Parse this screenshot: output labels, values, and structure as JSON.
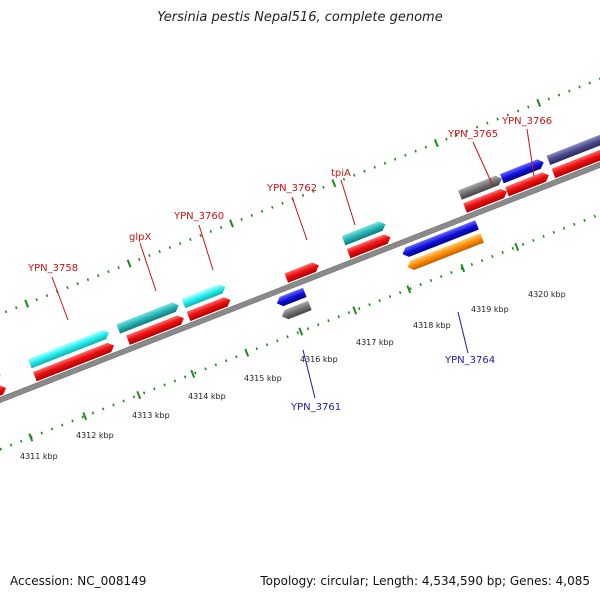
{
  "title": "Yersinia pestis Nepal516, complete genome",
  "footer": {
    "accession": "Accession: NC_008149",
    "summary": "Topology: circular; Length: 4,534,590 bp; Genes: 4,085"
  },
  "colors": {
    "backbone": "#8a8a8a",
    "tick": "#1f8a1f",
    "red": "#ee1111",
    "cyan": "#22dddd",
    "teal": "#22b4b4",
    "blue": "#1111dd",
    "gray": "#707070",
    "orange": "#ff8c00",
    "slate": "#4a4a8a"
  },
  "scale_labels": [
    "4311 kbp",
    "4312 kbp",
    "4313 kbp",
    "4314 kbp",
    "4315 kbp",
    "4316 kbp",
    "4317 kbp",
    "4318 kbp",
    "4319 kbp",
    "4320 kbp"
  ],
  "gene_labels_forward": [
    "YPN_3758",
    "glpX",
    "YPN_3760",
    "YPN_3762",
    "tpiA",
    "YPN_3765",
    "YPN_3766"
  ],
  "gene_labels_reverse": [
    "YPN_3761",
    "YPN_3764"
  ]
}
